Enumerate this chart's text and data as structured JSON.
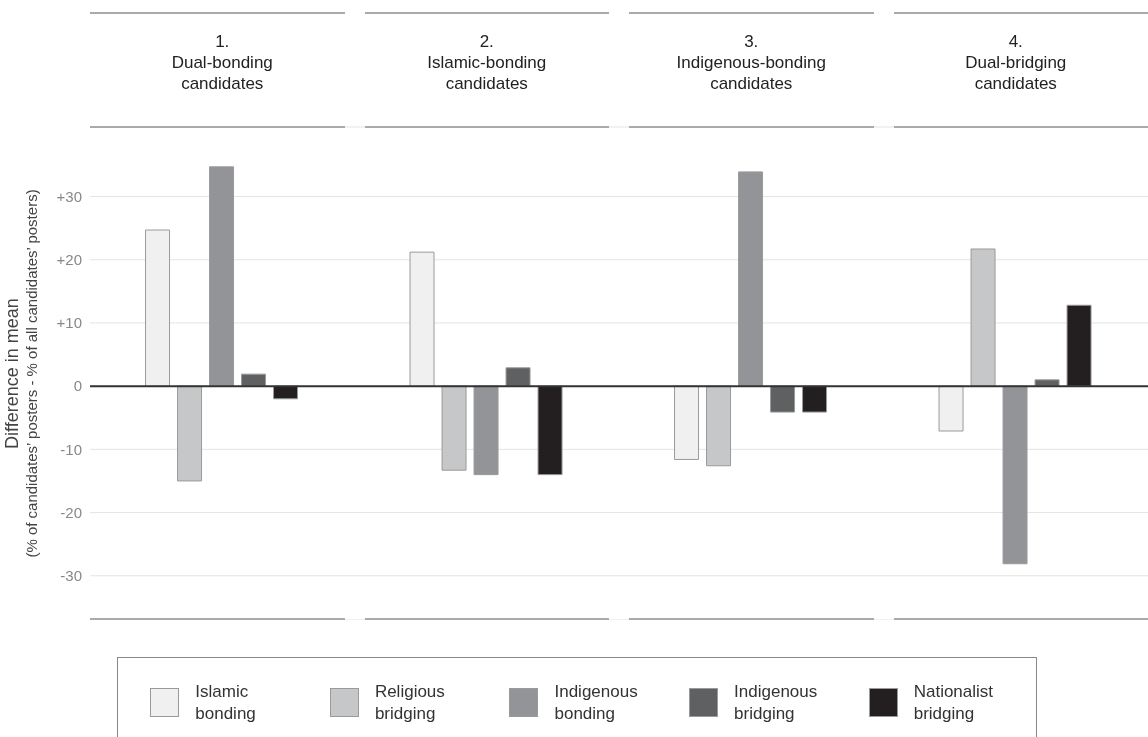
{
  "chart_data": {
    "type": "bar",
    "ylabel": "Difference in mean\n(% of candidates’ posters - % of all candidates’ posters)",
    "categories": [
      "1.\nDual-bonding\ncandidates",
      "2.\nIslamic-bonding\ncandidates",
      "3.\nIndigenous-bonding\ncandidates",
      "4.\nDual-bridging\ncandidates"
    ],
    "series": [
      {
        "name": "Islamic bonding",
        "color": "#f0f0f0",
        "values": [
          24.7,
          21.2,
          -11.6,
          -7.1
        ]
      },
      {
        "name": "Religious bridging",
        "color": "#c6c7c9",
        "values": [
          -15.0,
          -13.3,
          -12.6,
          21.7
        ]
      },
      {
        "name": "Indigenous bonding",
        "color": "#939498",
        "values": [
          34.7,
          -14.0,
          33.9,
          -28.1
        ]
      },
      {
        "name": "Indigenous bridging",
        "color": "#5f6062",
        "values": [
          1.9,
          2.9,
          -4.1,
          1.0
        ]
      },
      {
        "name": "Nationalist bridging",
        "color": "#231f20",
        "values": [
          -2.0,
          -14.0,
          -4.1,
          12.8
        ]
      }
    ],
    "ylim": [
      -37,
      41
    ],
    "yticks": [
      {
        "value": -30,
        "label": "-30"
      },
      {
        "value": -20,
        "label": "-20"
      },
      {
        "value": -10,
        "label": "-10"
      },
      {
        "value": 0,
        "label": "0"
      },
      {
        "value": 10,
        "label": "+10"
      },
      {
        "value": 20,
        "label": "+20"
      },
      {
        "value": 30,
        "label": "+30"
      }
    ],
    "grid": "y",
    "legend": "bottom",
    "ref_lines": [
      {
        "axis": "y",
        "value": 0,
        "color": "#333333"
      }
    ]
  }
}
